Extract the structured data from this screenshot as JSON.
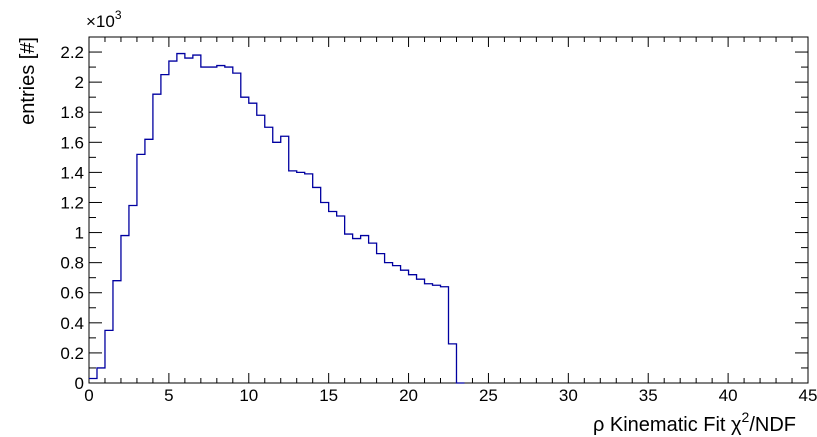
{
  "chart_data": {
    "type": "histogram",
    "xlabel_prefix": "ρ Kinematic Fit ",
    "xlabel_chi": "χ",
    "xlabel_sup": "2",
    "xlabel_suffix": "/NDF",
    "ylabel": "entries [#]",
    "y_multiplier_base": "×10",
    "y_multiplier_exp": "3",
    "xlim": [
      0,
      45
    ],
    "ylim": [
      0,
      2.3
    ],
    "x_ticks": [
      "0",
      "5",
      "10",
      "15",
      "20",
      "25",
      "30",
      "35",
      "40",
      "45"
    ],
    "y_ticks": [
      "0",
      "0.2",
      "0.4",
      "0.6",
      "0.8",
      "1",
      "1.2",
      "1.4",
      "1.6",
      "1.8",
      "2",
      "2.2"
    ],
    "bin_width": 0.5,
    "values": [
      0.03,
      0.1,
      0.35,
      0.68,
      0.98,
      1.18,
      1.52,
      1.62,
      1.92,
      2.05,
      2.14,
      2.19,
      2.16,
      2.18,
      2.1,
      2.1,
      2.11,
      2.1,
      2.06,
      1.9,
      1.86,
      1.78,
      1.7,
      1.6,
      1.64,
      1.41,
      1.4,
      1.39,
      1.3,
      1.2,
      1.14,
      1.11,
      0.99,
      0.96,
      0.98,
      0.93,
      0.86,
      0.8,
      0.78,
      0.75,
      0.72,
      0.69,
      0.66,
      0.65,
      0.64,
      0.26,
      0.0
    ],
    "line_color": "#0000a0",
    "grid": false
  }
}
